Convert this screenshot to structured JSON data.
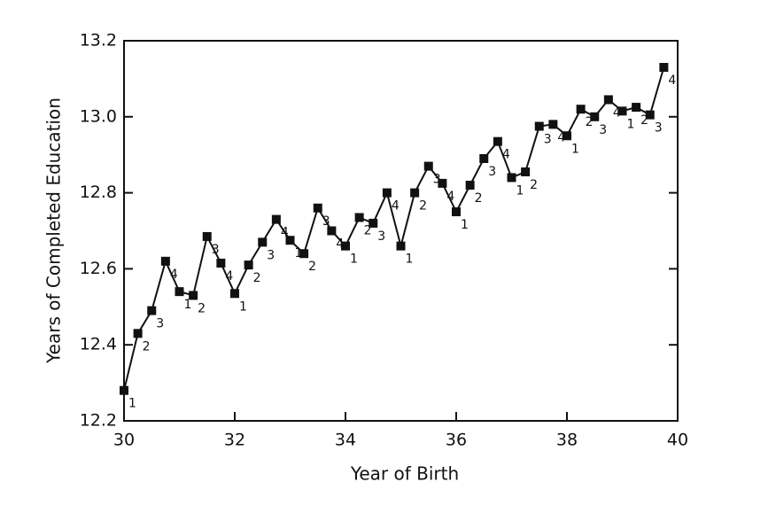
{
  "chart_data": {
    "type": "line",
    "xlabel": "Year of Birth",
    "ylabel": "Years of Completed Education",
    "x": [
      30,
      30.25,
      30.5,
      30.75,
      31,
      31.25,
      31.5,
      31.75,
      32,
      32.25,
      32.5,
      32.75,
      33,
      33.25,
      33.5,
      33.75,
      34,
      34.25,
      34.5,
      34.75,
      35,
      35.25,
      35.5,
      35.75,
      36,
      36.25,
      36.5,
      36.75,
      37,
      37.25,
      37.5,
      37.75,
      38,
      38.25,
      38.5,
      38.75,
      39,
      39.25,
      39.5,
      39.75
    ],
    "values": [
      12.28,
      12.43,
      12.49,
      12.62,
      12.54,
      12.53,
      12.685,
      12.615,
      12.535,
      12.61,
      12.67,
      12.73,
      12.675,
      12.64,
      12.76,
      12.7,
      12.66,
      12.735,
      12.72,
      12.8,
      12.66,
      12.8,
      12.87,
      12.825,
      12.75,
      12.82,
      12.89,
      12.935,
      12.84,
      12.855,
      12.975,
      12.98,
      12.95,
      13.02,
      13.0,
      13.045,
      13.015,
      13.025,
      13.005,
      13.13
    ],
    "point_labels": [
      "1",
      "2",
      "3",
      "4",
      "1",
      "2",
      "3",
      "4",
      "1",
      "2",
      "3",
      "4",
      "1",
      "2",
      "3",
      "4",
      "1",
      "2",
      "3",
      "4",
      "1",
      "2",
      "3",
      "4",
      "1",
      "2",
      "3",
      "4",
      "1",
      "2",
      "3",
      "4",
      "1",
      "2",
      "3",
      "4",
      "1",
      "2",
      "3",
      "4"
    ],
    "color": "#111111",
    "xlim": [
      30,
      40
    ],
    "xticks": [
      30,
      32,
      34,
      36,
      38,
      40
    ],
    "ylim": [
      12.2,
      13.2
    ],
    "yticks": [
      12.2,
      12.4,
      12.6,
      12.8,
      {
        "value": 13,
        "label": "13.0"
      },
      13.2
    ]
  }
}
